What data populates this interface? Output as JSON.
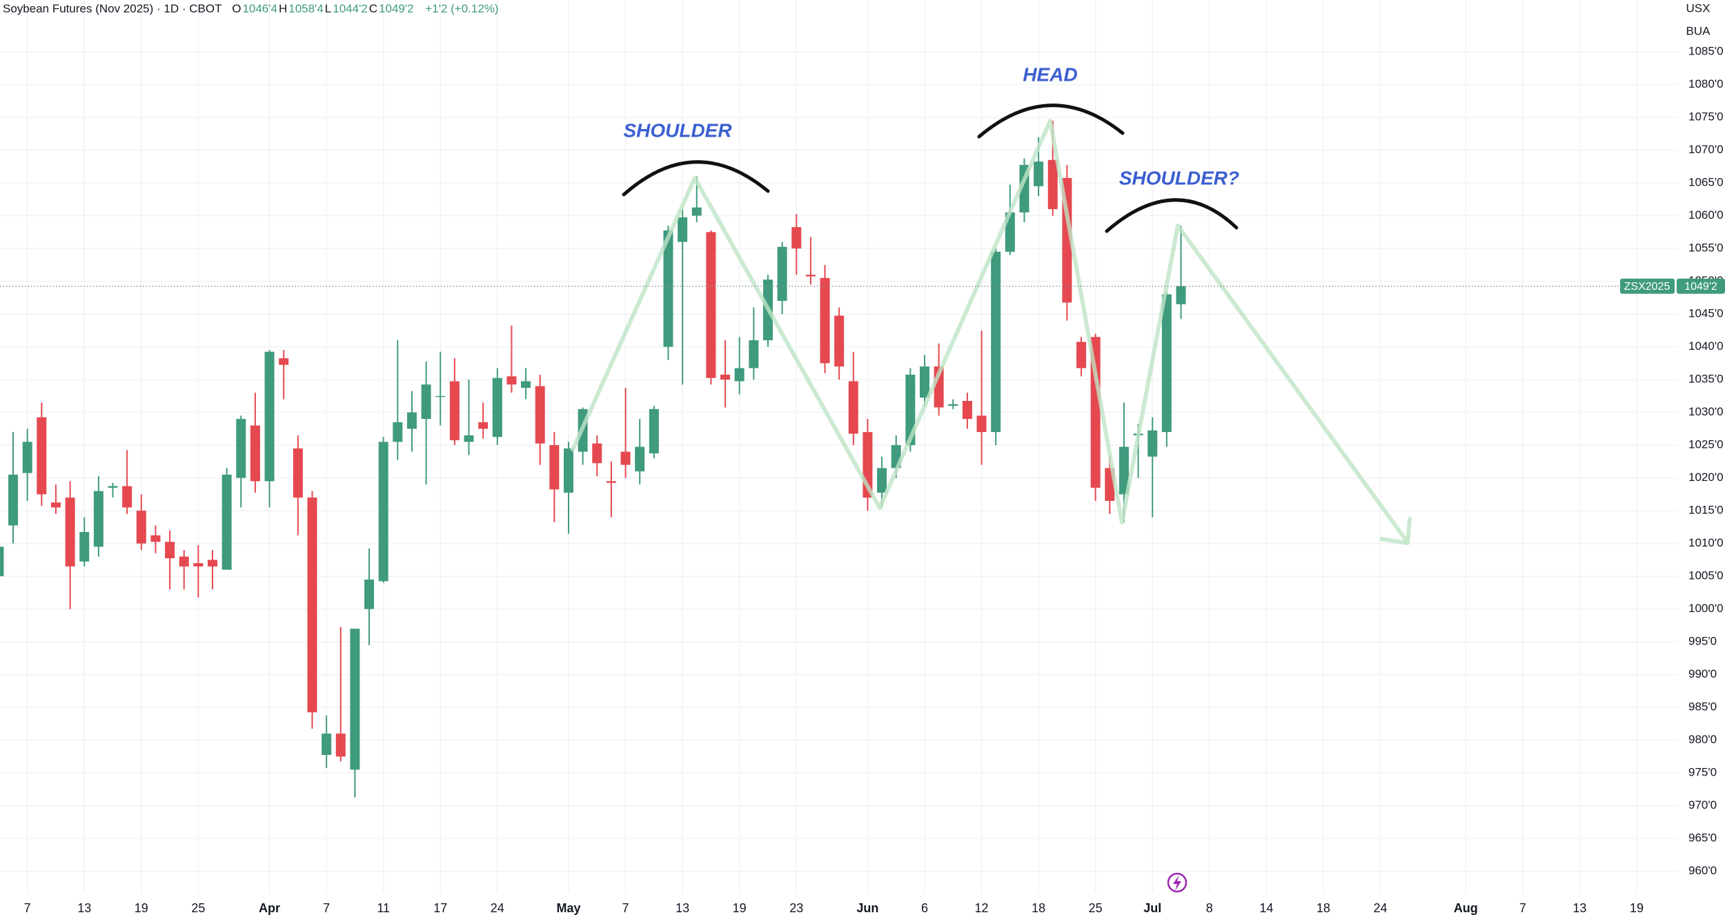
{
  "chart_data": {
    "type": "candlestick",
    "header": {
      "title": "Soybean Futures (Nov 2025) · 1D · CBOT",
      "ohlc": [
        {
          "key": "O",
          "label": "1046'4"
        },
        {
          "key": "H",
          "label": "1058'4"
        },
        {
          "key": "L",
          "label": "1044'2"
        },
        {
          "key": "C",
          "label": "1049'2"
        }
      ],
      "change": "+1'2 (+0.12%)"
    },
    "currency": "USX",
    "unit_label": "BUA",
    "price_tag": {
      "symbol": "ZSX2025",
      "label": "1049'2"
    },
    "annotations": [
      "SHOULDER",
      "HEAD",
      "SHOULDER?"
    ],
    "up_color": "#3f9a7e",
    "down_color": "#e5484f",
    "grid": true,
    "ylim": [
      956.7,
      1092.9
    ],
    "yticks": [
      {
        "value": 960,
        "label": "960'0"
      },
      {
        "value": 965,
        "label": "965'0"
      },
      {
        "value": 970,
        "label": "970'0"
      },
      {
        "value": 975,
        "label": "975'0"
      },
      {
        "value": 980,
        "label": "980'0"
      },
      {
        "value": 985,
        "label": "985'0"
      },
      {
        "value": 990,
        "label": "990'0"
      },
      {
        "value": 995,
        "label": "995'0"
      },
      {
        "value": 1000,
        "label": "1000'0"
      },
      {
        "value": 1005,
        "label": "1005'0"
      },
      {
        "value": 1010,
        "label": "1010'0"
      },
      {
        "value": 1015,
        "label": "1015'0"
      },
      {
        "value": 1020,
        "label": "1020'0"
      },
      {
        "value": 1025,
        "label": "1025'0"
      },
      {
        "value": 1030,
        "label": "1030'0"
      },
      {
        "value": 1035,
        "label": "1035'0"
      },
      {
        "value": 1040,
        "label": "1040'0"
      },
      {
        "value": 1045,
        "label": "1045'0"
      },
      {
        "value": 1050,
        "label": "1050'0"
      },
      {
        "value": 1055,
        "label": "1055'0"
      },
      {
        "value": 1060,
        "label": "1060'0"
      },
      {
        "value": 1065,
        "label": "1065'0"
      },
      {
        "value": 1070,
        "label": "1070'0"
      },
      {
        "value": 1075,
        "label": "1075'0"
      },
      {
        "value": 1080,
        "label": "1080'0"
      },
      {
        "value": 1085,
        "label": "1085'0"
      }
    ],
    "categories": [
      null,
      null,
      "7",
      null,
      null,
      null,
      "13",
      null,
      null,
      null,
      "19",
      null,
      null,
      null,
      "25",
      null,
      null,
      null,
      null,
      "Apr",
      null,
      null,
      null,
      "7",
      null,
      null,
      null,
      "11",
      null,
      null,
      null,
      "17",
      null,
      null,
      null,
      "24",
      null,
      null,
      null,
      null,
      "May",
      null,
      null,
      null,
      "7",
      null,
      null,
      null,
      "13",
      null,
      null,
      null,
      "19",
      null,
      null,
      null,
      "23",
      null,
      null,
      null,
      null,
      "Jun",
      null,
      null,
      null,
      "6",
      null,
      null,
      null,
      "12",
      null,
      null,
      null,
      "18",
      null,
      null,
      null,
      "25",
      null,
      null,
      null,
      "Jul",
      null,
      null,
      null,
      "8",
      null,
      null,
      null,
      "14",
      null,
      null,
      null,
      "18",
      null,
      null,
      null,
      "24",
      null,
      null,
      null,
      null,
      null,
      "Aug",
      null,
      null,
      null,
      "7",
      null,
      null,
      null,
      "13",
      null,
      null,
      null,
      "19",
      null,
      null,
      null
    ],
    "open": [
      1005,
      1012.75,
      1020.75,
      1029.25,
      1016.25,
      1017,
      1007.25,
      1009.5,
      1018.5,
      1018.75,
      1015,
      1011.25,
      1010.25,
      1008,
      1007,
      1007.5,
      1006,
      1020,
      1028,
      1019.5,
      1038.25,
      1024.5,
      1017,
      977.75,
      981,
      975.5,
      1000,
      1004.25,
      1025.5,
      1027.5,
      1029,
      1032.5,
      1034.75,
      1025.5,
      1028.5,
      1026.25,
      1035.5,
      1033.75,
      1034,
      1025,
      1017.75,
      1024,
      1025.25,
      1019.5,
      1024,
      1021,
      1023.75,
      1040,
      1056,
      1060,
      1057.5,
      1035.75,
      1034.75,
      1036.75,
      1041,
      1047,
      1058.25,
      1051,
      1050.5,
      1044.75,
      1034.75,
      1027,
      1017.75,
      1021.5,
      1025,
      1032.25,
      1037,
      1031,
      1031.75,
      1029.5,
      1027,
      1054.5,
      1060.5,
      1064.5,
      1068.5,
      1065.75,
      1040.75,
      1041.5,
      1021.5,
      1017.5,
      1026.5,
      1023.25,
      1027,
      1046.5,
      null,
      null,
      null,
      null,
      null,
      null,
      null,
      null,
      null,
      null,
      null,
      null,
      null,
      null,
      null,
      null,
      null,
      null,
      null,
      null,
      null,
      null,
      null,
      null,
      null,
      null,
      null,
      null,
      null,
      null,
      null,
      null,
      null,
      null,
      null
    ],
    "high": [
      1014,
      1027,
      1027.5,
      1031.5,
      1019,
      1019.5,
      1014,
      1020.25,
      1019.25,
      1024.25,
      1017.5,
      1012.75,
      1012,
      1009,
      1009.75,
      1009,
      1021.5,
      1029.5,
      1033,
      1039.5,
      1039.5,
      1026.5,
      1018,
      983.75,
      997.25,
      997,
      1009.25,
      1026.25,
      1041,
      1033.25,
      1037.75,
      1039.25,
      1038.25,
      1035,
      1031.5,
      1036.75,
      1043.25,
      1036.75,
      1035.75,
      1027,
      1025.5,
      1030.75,
      1026.5,
      1022.5,
      1033.75,
      1029,
      1031,
      1058.5,
      1061,
      1066,
      1057.75,
      1041,
      1041.5,
      1046,
      1051,
      1056,
      1060.25,
      1056.75,
      1052.5,
      1046,
      1039.25,
      1029,
      1023.25,
      1026.5,
      1036.75,
      1038.75,
      1040.5,
      1032,
      1033,
      1042.5,
      1055,
      1064.75,
      1068.75,
      1072,
      1074.5,
      1067.75,
      1041.5,
      1042,
      1023.25,
      1031.5,
      1028.25,
      1029.25,
      1048.5,
      1058.5,
      null,
      null,
      null,
      null,
      null,
      null,
      null,
      null,
      null,
      null,
      null,
      null,
      null,
      null,
      null,
      null,
      null,
      null,
      null,
      null,
      null,
      null,
      null,
      null,
      null,
      null,
      null,
      null,
      null,
      null,
      null,
      null,
      null,
      null,
      null
    ],
    "low": [
      998.5,
      1010,
      1016.5,
      1015.75,
      1014.5,
      1000,
      1006.5,
      1008,
      1017,
      1014.5,
      1009,
      1008.5,
      1003,
      1003,
      1001.75,
      1003,
      1006,
      1015.5,
      1017.75,
      1015.5,
      1032,
      1011.25,
      981.75,
      975.75,
      976.75,
      971.25,
      994.5,
      1004,
      1022.75,
      1024,
      1019,
      1028,
      1025,
      1023.5,
      1026,
      1025,
      1033,
      1032,
      1022,
      1013.25,
      1011.5,
      1022,
      1020.25,
      1014,
      1020,
      1019,
      1023,
      1038,
      1034.25,
      1059,
      1034.25,
      1030.75,
      1032.75,
      1035,
      1040,
      1045,
      1051,
      1049.5,
      1036,
      1035,
      1025,
      1015,
      1015.5,
      1020,
      1024,
      1031,
      1029.5,
      1030.5,
      1027.5,
      1022,
      1025,
      1054,
      1059,
      1063,
      1060,
      1044,
      1035.5,
      1016.5,
      1014.5,
      1013.25,
      1020,
      1014,
      1024.75,
      1044.25,
      null,
      null,
      null,
      null,
      null,
      null,
      null,
      null,
      null,
      null,
      null,
      null,
      null,
      null,
      null,
      null,
      null,
      null,
      null,
      null,
      null,
      null,
      null,
      null,
      null,
      null,
      null,
      null,
      null,
      null,
      null,
      null,
      null,
      null,
      null
    ],
    "close": [
      1009.5,
      1020.5,
      1025.5,
      1017.5,
      1015.5,
      1006.5,
      1011.75,
      1018,
      1018.75,
      1015.5,
      1010,
      1010.25,
      1007.75,
      1006.5,
      1006.5,
      1006.5,
      1020.5,
      1029,
      1019.5,
      1039.25,
      1037.25,
      1017,
      984.25,
      981,
      977.5,
      997,
      1004.5,
      1025.5,
      1028.5,
      1030,
      1034.25,
      1032.5,
      1025.75,
      1026.5,
      1027.5,
      1035.25,
      1034.25,
      1034.75,
      1025.25,
      1018.25,
      1024.5,
      1030.5,
      1022.25,
      1019.25,
      1022,
      1024.75,
      1030.5,
      1057.75,
      1059.75,
      1061.25,
      1035.25,
      1035,
      1036.75,
      1041,
      1050.25,
      1055.25,
      1055,
      1050.75,
      1037.5,
      1037,
      1026.75,
      1017,
      1021.5,
      1025,
      1035.75,
      1037,
      1030.75,
      1031.25,
      1029,
      1027,
      1054.5,
      1060.5,
      1067.75,
      1068.25,
      1061,
      1046.75,
      1036.75,
      1018.5,
      1016.5,
      1024.75,
      1026.75,
      1027.25,
      1048,
      1049.25,
      null,
      null,
      null,
      null,
      null,
      null,
      null,
      null,
      null,
      null,
      null,
      null,
      null,
      null,
      null,
      null,
      null,
      null,
      null,
      null,
      null,
      null,
      null,
      null,
      null,
      null,
      null,
      null,
      null,
      null,
      null,
      null,
      null,
      null,
      null
    ]
  }
}
